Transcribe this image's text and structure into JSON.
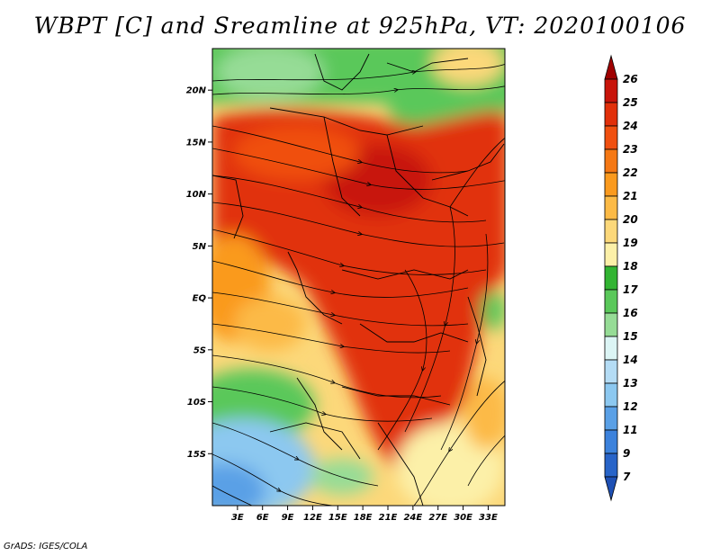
{
  "title": "WBPT [C] and Sreamline at 925hPa, VT: 2020100106",
  "credit": "GrADS: IGES/COLA",
  "map": {
    "lat_range": [
      -20,
      24
    ],
    "lon_range": [
      0,
      35
    ],
    "lat_ticks": [
      {
        "value": 20,
        "label": "20N"
      },
      {
        "value": 15,
        "label": "15N"
      },
      {
        "value": 10,
        "label": "10N"
      },
      {
        "value": 5,
        "label": "5N"
      },
      {
        "value": 0,
        "label": "EQ"
      },
      {
        "value": -5,
        "label": "5S"
      },
      {
        "value": -10,
        "label": "10S"
      },
      {
        "value": -15,
        "label": "15S"
      }
    ],
    "lon_ticks": [
      {
        "value": 3,
        "label": "3E"
      },
      {
        "value": 6,
        "label": "6E"
      },
      {
        "value": 9,
        "label": "9E"
      },
      {
        "value": 12,
        "label": "12E"
      },
      {
        "value": 15,
        "label": "15E"
      },
      {
        "value": 18,
        "label": "18E"
      },
      {
        "value": 21,
        "label": "21E"
      },
      {
        "value": 24,
        "label": "24E"
      },
      {
        "value": 27,
        "label": "27E"
      },
      {
        "value": 30,
        "label": "30E"
      },
      {
        "value": 33,
        "label": "33E"
      }
    ],
    "variable": "WBPT",
    "level": "925hPa"
  },
  "colorbar": {
    "labels": [
      "26",
      "25",
      "24",
      "23",
      "22",
      "21",
      "20",
      "19",
      "18",
      "17",
      "16",
      "15",
      "14",
      "13",
      "12",
      "11",
      "9",
      "7"
    ],
    "colors": [
      "#a00000",
      "#c8140a",
      "#e1300a",
      "#f05010",
      "#f57814",
      "#fa9a1e",
      "#fcba46",
      "#fcd87a",
      "#fcf0a8",
      "#32b432",
      "#5ac85a",
      "#96dc96",
      "#dcf5f5",
      "#b4dcf5",
      "#8cc8f0",
      "#5aa0e6",
      "#3c82dc",
      "#2864c8",
      "#1e50b4"
    ]
  }
}
